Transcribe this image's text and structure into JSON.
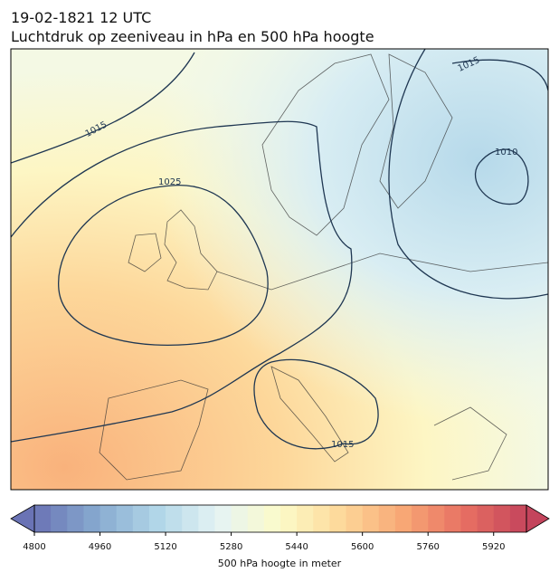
{
  "header": {
    "date": "19-02-1821 12 UTC",
    "title": "Luchtdruk op zeeniveau in hPa en 500 hPa hoogte"
  },
  "map": {
    "contour_labels": [
      "1015",
      "1025",
      "1010",
      "1015",
      "1015"
    ]
  },
  "colorbar": {
    "range": [
      4800,
      6000
    ],
    "step": 40,
    "ticks": [
      4800,
      4960,
      5120,
      5280,
      5440,
      5600,
      5760,
      5920
    ],
    "label": "500 hPa hoogte in meter",
    "colors": [
      "#6a73b5",
      "#86a9cf",
      "#b1d6e8",
      "#e6f4f4",
      "#fcfbc8",
      "#fdd899",
      "#f8a775",
      "#e76f62",
      "#c4445c"
    ]
  }
}
